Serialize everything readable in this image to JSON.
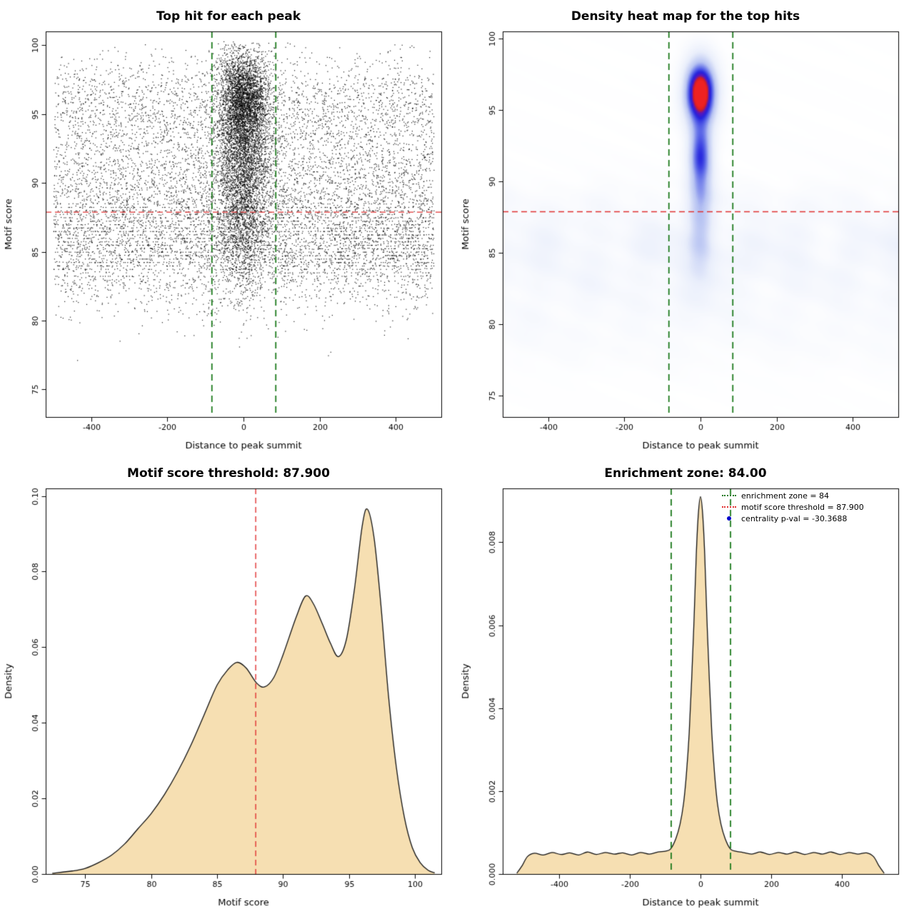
{
  "chart_data": [
    {
      "type": "scatter",
      "title": "Top hit for each peak",
      "xlabel": "Distance to peak summit",
      "ylabel": "Motif score",
      "xlim": [
        -520,
        520
      ],
      "ylim": [
        73,
        101
      ],
      "xticks": [
        -400,
        -200,
        0,
        200,
        400
      ],
      "yticks": [
        75,
        80,
        85,
        90,
        95,
        100
      ],
      "point_color": "#000000",
      "n_points": 16000,
      "background_fraction": 0.58,
      "background": {
        "x_uniform": [
          -500,
          500
        ],
        "y_mixture": [
          {
            "w": 0.34,
            "mean": 85.3,
            "sd": 2.2
          },
          {
            "w": 0.27,
            "mean": 88.0,
            "sd": 2.8
          },
          {
            "w": 0.22,
            "mean": 92.0,
            "sd": 2.8
          },
          {
            "w": 0.17,
            "mean": 96.0,
            "sd": 1.8
          }
        ]
      },
      "cluster": {
        "x_mean": 0,
        "x_sd": 34,
        "y_mixture": [
          {
            "w": 0.45,
            "mean": 96.3,
            "sd": 1.7
          },
          {
            "w": 0.3,
            "mean": 92.5,
            "sd": 2.2
          },
          {
            "w": 0.25,
            "mean": 87.5,
            "sd": 2.8
          }
        ]
      },
      "enrichment_zone": [
        -84,
        84
      ],
      "score_threshold": 87.9,
      "vlines": [
        {
          "x": -84,
          "color": "#1c7a1c",
          "dash": [
            9,
            6
          ],
          "width": 1.8
        },
        {
          "x": 84,
          "color": "#1c7a1c",
          "dash": [
            9,
            6
          ],
          "width": 1.8
        }
      ],
      "hlines": [
        {
          "y": 87.9,
          "color": "#e03030",
          "dash": [
            8,
            5
          ],
          "width": 1.4
        }
      ]
    },
    {
      "type": "heatmap",
      "title": "Density heat map for the top hits",
      "xlabel": "Distance to peak summit",
      "ylabel": "Motif score",
      "xlim": [
        -520,
        520
      ],
      "ylim": [
        73.5,
        100.5
      ],
      "xticks": [
        -400,
        -200,
        0,
        200,
        400
      ],
      "yticks": [
        75,
        80,
        85,
        90,
        95,
        100
      ],
      "hotspot": {
        "x": 0,
        "y": 96.2
      },
      "enrichment_zone": [
        -84,
        84
      ],
      "score_threshold": 87.9,
      "scale": 1.1,
      "noise_amp": 0.04,
      "components": [
        {
          "amp": 1.05,
          "sx": 40,
          "y0": 96.2,
          "sy": 2.2
        },
        {
          "amp": 0.55,
          "sx": 30,
          "y0": 92.0,
          "sy": 2.0
        },
        {
          "amp": 0.3,
          "sx": 34,
          "y0": 89.3,
          "sy": 2.4
        },
        {
          "amp": 0.18,
          "sx": 28,
          "y0": 86.3,
          "sy": 2.2
        },
        {
          "amp": 0.1,
          "sx": 60,
          "y0": 84.0,
          "sy": 3.0
        }
      ],
      "bands": [
        {
          "amp": 0.13,
          "y0": 85.7,
          "sy": 2.0
        },
        {
          "amp": 0.08,
          "y0": 83.0,
          "sy": 2.2
        },
        {
          "amp": 0.06,
          "y0": 88.6,
          "sy": 1.5
        },
        {
          "amp": 0.05,
          "y0": 80.3,
          "sy": 2.0
        },
        {
          "amp": 0.03,
          "y0": 78.0,
          "sy": 1.8
        }
      ],
      "color_stops": [
        [
          0,
          "#ffffff"
        ],
        [
          0.22,
          "#e9eefb"
        ],
        [
          0.45,
          "#b7c3f2"
        ],
        [
          0.62,
          "#5d6ae8"
        ],
        [
          0.75,
          "#2222dd"
        ],
        [
          0.86,
          "#5c16b8"
        ],
        [
          0.93,
          "#d21f1f"
        ],
        [
          1,
          "#ee2222"
        ]
      ],
      "vlines": [
        {
          "x": -84,
          "color": "#1c7a1c",
          "dash": [
            9,
            6
          ],
          "width": 1.8
        },
        {
          "x": 84,
          "color": "#1c7a1c",
          "dash": [
            9,
            6
          ],
          "width": 1.8
        }
      ],
      "hlines": [
        {
          "y": 87.9,
          "color": "#e03030",
          "dash": [
            8,
            5
          ],
          "width": 1.4
        }
      ]
    },
    {
      "type": "area",
      "title": "Motif score threshold: 87.900",
      "xlabel": "Motif score",
      "ylabel": "Density",
      "xlim": [
        72,
        102
      ],
      "ylim": [
        0,
        0.102
      ],
      "xticks": [
        75,
        80,
        85,
        90,
        95,
        100
      ],
      "yticks": [
        0,
        0.02,
        0.04,
        0.06,
        0.08,
        0.1
      ],
      "ytick_decimals": 2,
      "fill_color": "#f6dfb2",
      "line_color": "#111111",
      "threshold": 87.9,
      "curve": {
        "x": [
          72.5,
          74,
          75,
          76,
          77,
          78,
          79,
          80,
          81,
          82,
          83,
          84,
          85,
          85.8,
          86.5,
          87.2,
          88,
          88.6,
          89.3,
          90,
          91,
          91.7,
          92.3,
          93,
          93.6,
          94.2,
          94.8,
          95.4,
          96,
          96.4,
          96.9,
          97.4,
          98,
          98.6,
          99.2,
          99.8,
          100.4,
          101,
          101.5
        ],
        "y": [
          0.0002,
          0.0008,
          0.0015,
          0.003,
          0.005,
          0.008,
          0.012,
          0.016,
          0.021,
          0.027,
          0.034,
          0.042,
          0.05,
          0.054,
          0.056,
          0.0545,
          0.0505,
          0.0495,
          0.052,
          0.058,
          0.068,
          0.0735,
          0.0715,
          0.066,
          0.061,
          0.0575,
          0.062,
          0.075,
          0.092,
          0.0965,
          0.089,
          0.072,
          0.047,
          0.028,
          0.015,
          0.007,
          0.003,
          0.001,
          0.0003
        ]
      },
      "vlines": [
        {
          "x": 87.9,
          "color": "#e03030",
          "dash": [
            8,
            5
          ],
          "width": 1.4
        }
      ]
    },
    {
      "type": "area",
      "title": "Enrichment zone: 84.00",
      "xlabel": "Distance to peak summit",
      "ylabel": "Density",
      "xlim": [
        -560,
        560
      ],
      "ylim": [
        0,
        0.0093
      ],
      "xticks": [
        -400,
        -200,
        0,
        200,
        400
      ],
      "yticks": [
        0,
        0.002,
        0.004,
        0.006,
        0.008
      ],
      "ytick_decimals": 3,
      "fill_color": "#f6dfb2",
      "line_color": "#111111",
      "enrichment_zone": [
        -84,
        84
      ],
      "curve": {
        "x": [
          -520,
          -505,
          -490,
          -470,
          -445,
          -420,
          -395,
          -370,
          -345,
          -320,
          -295,
          -270,
          -245,
          -220,
          -195,
          -170,
          -145,
          -120,
          -100,
          -85,
          -70,
          -58,
          -48,
          -40,
          -32,
          -25,
          -18,
          -12,
          -6,
          0,
          6,
          12,
          18,
          25,
          32,
          40,
          48,
          58,
          70,
          85,
          100,
          120,
          145,
          170,
          195,
          220,
          245,
          270,
          295,
          320,
          345,
          370,
          395,
          420,
          445,
          470,
          490,
          505,
          520
        ],
        "y": [
          2e-05,
          0.0002,
          0.00042,
          0.0005,
          0.00046,
          0.00052,
          0.00047,
          0.00051,
          0.00046,
          0.00053,
          0.00047,
          0.00052,
          0.00048,
          0.00051,
          0.00046,
          0.00052,
          0.00048,
          0.00053,
          0.00055,
          0.0006,
          0.00085,
          0.0012,
          0.0017,
          0.0024,
          0.0034,
          0.0047,
          0.0062,
          0.0077,
          0.0087,
          0.0091,
          0.0087,
          0.0077,
          0.0062,
          0.0047,
          0.0034,
          0.0024,
          0.0017,
          0.0012,
          0.00085,
          0.0006,
          0.00055,
          0.00052,
          0.00048,
          0.00053,
          0.00047,
          0.00052,
          0.00048,
          0.00053,
          0.00047,
          0.00052,
          0.00048,
          0.00053,
          0.00047,
          0.00052,
          0.00048,
          0.00051,
          0.00042,
          0.0002,
          2e-05
        ]
      },
      "vlines": [
        {
          "x": -84,
          "color": "#1c7a1c",
          "dash": [
            9,
            6
          ],
          "width": 1.8
        },
        {
          "x": 84,
          "color": "#1c7a1c",
          "dash": [
            9,
            6
          ],
          "width": 1.8
        }
      ],
      "legend": [
        {
          "label": "enrichment zone = 84",
          "color": "#1c7a1c",
          "marker": "dotted-line"
        },
        {
          "label": "motif score threshold = 87.900",
          "color": "#e03030",
          "marker": "dotted-line"
        },
        {
          "label": "centrality p-val = -30.3688",
          "color": "#0000cc",
          "marker": "point"
        }
      ]
    }
  ]
}
